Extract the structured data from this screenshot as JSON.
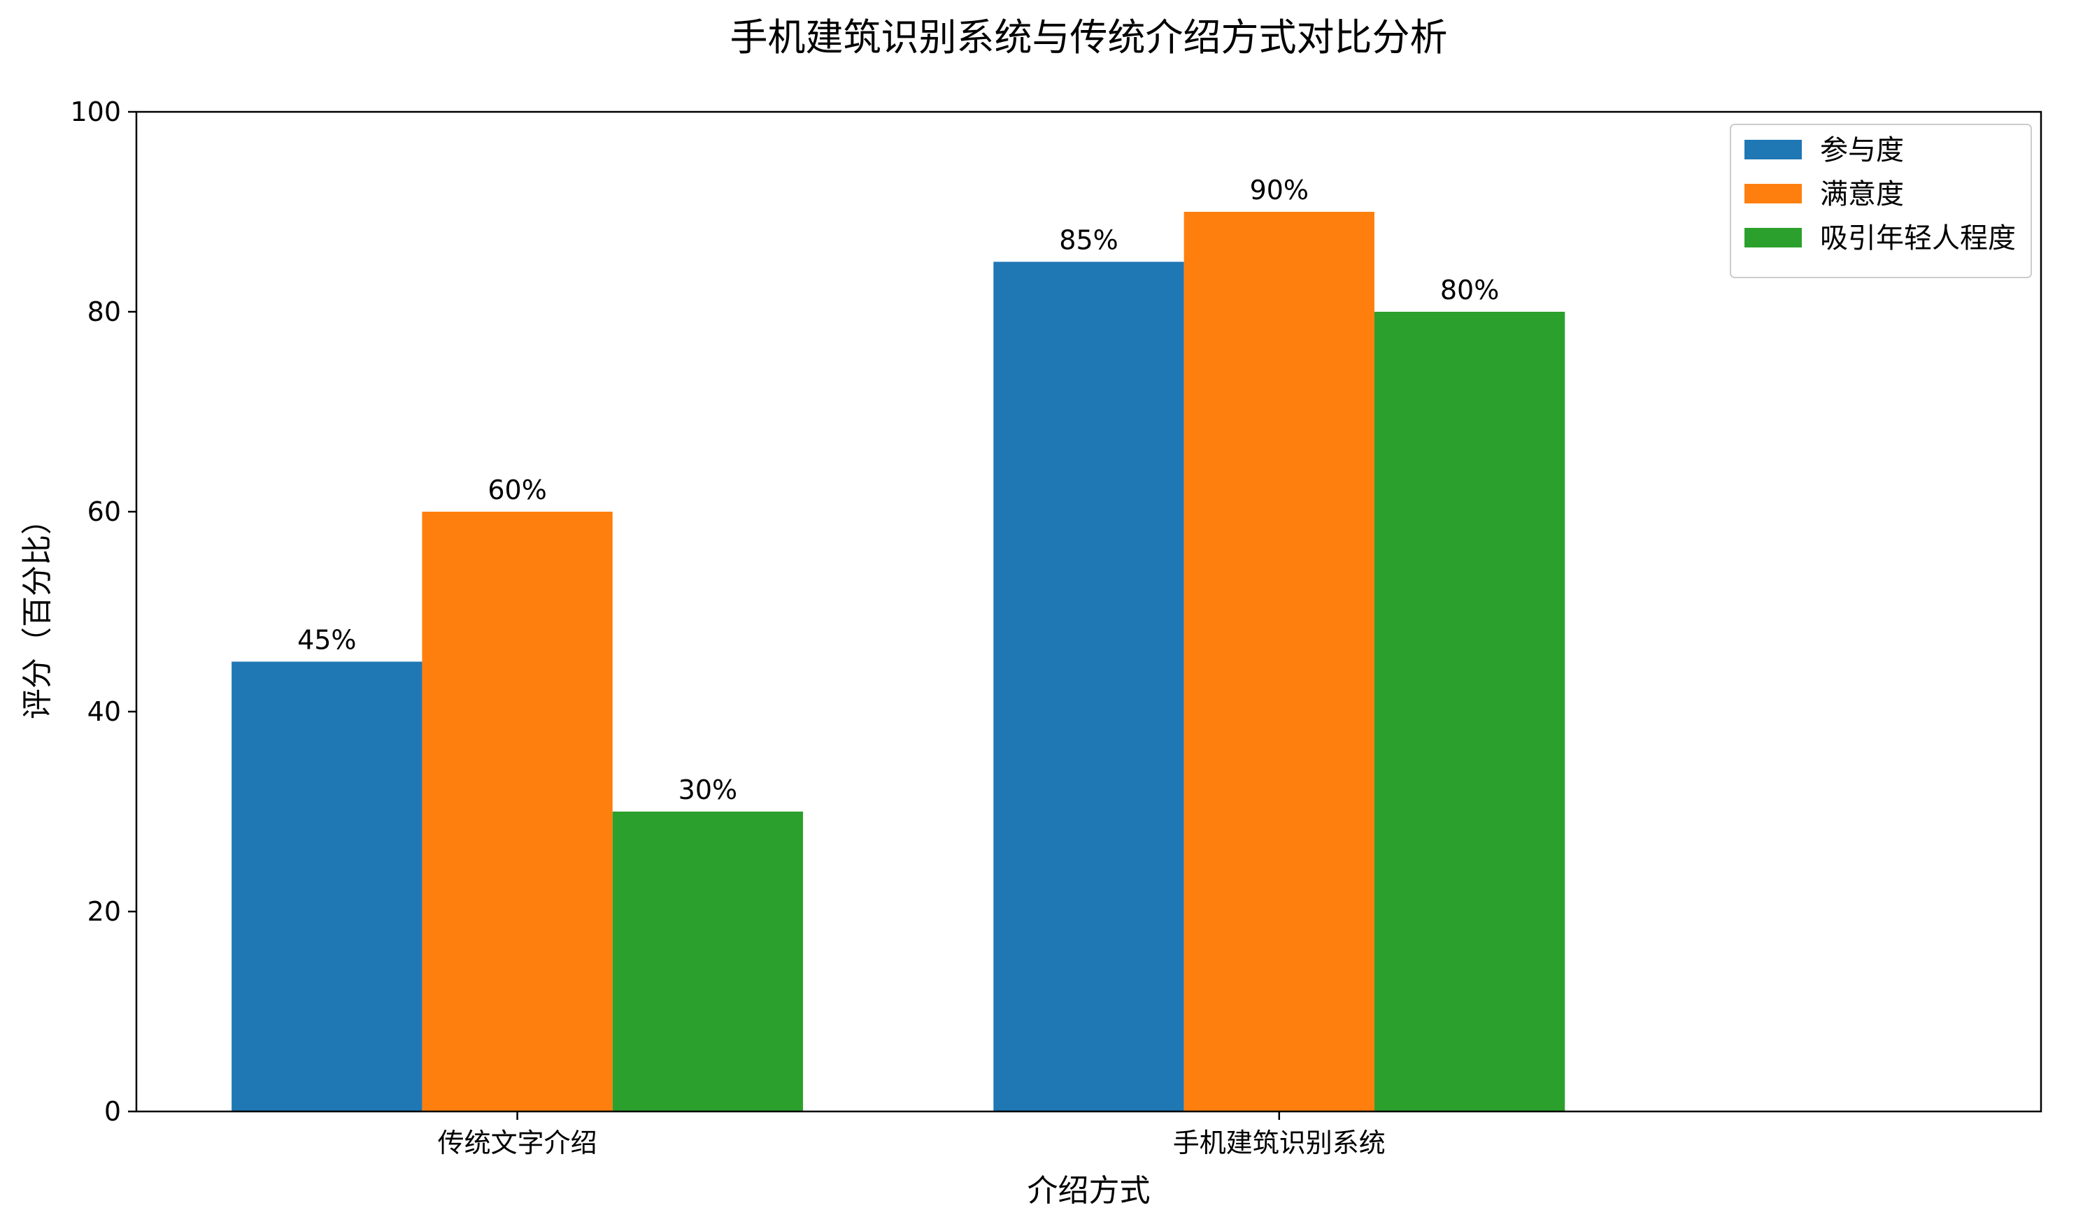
{
  "chart_data": {
    "type": "bar",
    "title": "手机建筑识别系统与传统介绍方式对比分析",
    "xlabel": "介绍方式",
    "ylabel": "评分（百分比）",
    "categories": [
      "传统文字介绍",
      "手机建筑识别系统"
    ],
    "series": [
      {
        "name": "参与度",
        "values": [
          45,
          85
        ],
        "color": "#1f77b4"
      },
      {
        "name": "满意度",
        "values": [
          60,
          90
        ],
        "color": "#ff7f0e"
      },
      {
        "name": "吸引年轻人程度",
        "values": [
          30,
          80
        ],
        "color": "#2ca02c"
      }
    ],
    "bar_label_suffix": "%",
    "ylim": [
      0,
      100
    ],
    "yticks": [
      0,
      20,
      40,
      60,
      80,
      100
    ],
    "grid": false,
    "legend_position": "top-right"
  }
}
